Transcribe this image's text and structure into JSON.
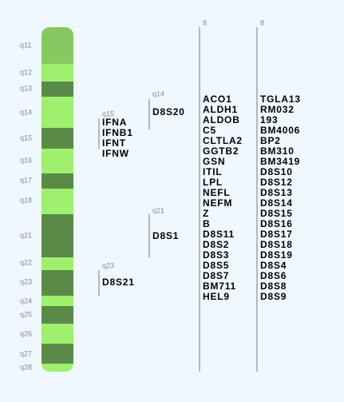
{
  "bands": [
    "q11",
    "q12",
    "q13",
    "q14",
    "q15",
    "q16",
    "q17",
    "q18",
    "q21",
    "q22",
    "q23",
    "q24",
    "q25",
    "q26",
    "q27",
    "q28"
  ],
  "groups": [
    {
      "band": "q15",
      "genes": [
        "IFNA",
        "IFNB1",
        "IFNT",
        "IFNW"
      ]
    },
    {
      "band": "q14",
      "genes": [
        "D8S20"
      ]
    },
    {
      "band": "q21",
      "genes": [
        "D8S1"
      ]
    },
    {
      "band": "q23",
      "genes": [
        "D8S21"
      ]
    }
  ],
  "columns": [
    {
      "label": "8",
      "genes": [
        "ACO1",
        "ALDH1",
        "ALDOB",
        "C5",
        "CLTLA2",
        "GGTB2",
        "GSN",
        "ITIL",
        "LPL",
        "NEFL",
        "NEFM",
        "Z",
        "B",
        "D8S11",
        "D8S2",
        "D8S3",
        "D8S5",
        "D8S7",
        "BM711",
        "HEL9"
      ]
    },
    {
      "label": "8",
      "genes": [
        "TGLA13",
        "RM032",
        "193",
        "BM4006",
        "BP2",
        "BM310",
        "BM3419",
        "D8S10",
        "D8S12",
        "D8S13",
        "D8S14",
        "D8S15",
        "D8S16",
        "D8S17",
        "D8S18",
        "D8S19",
        "D8S4",
        "D8S6",
        "D8S8",
        "D8S9"
      ]
    }
  ]
}
